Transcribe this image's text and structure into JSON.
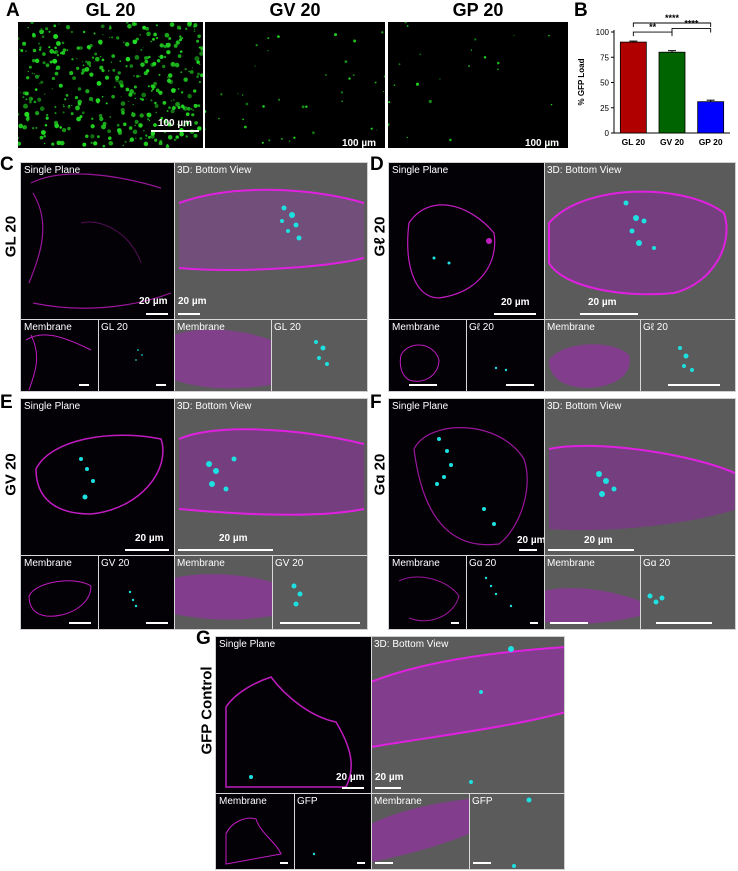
{
  "panel_a": {
    "letter": "A",
    "images": [
      {
        "title": "GL 20",
        "scale": "100 µm"
      },
      {
        "title": "GV 20",
        "scale": "100 µm"
      },
      {
        "title": "GP 20",
        "scale": "100 µm"
      }
    ]
  },
  "panel_b": {
    "letter": "B"
  },
  "chart_data": {
    "type": "bar",
    "categories": [
      "GL 20",
      "GV 20",
      "GP 20"
    ],
    "values": [
      90,
      80,
      31
    ],
    "errors": [
      1,
      1.5,
      1.5
    ],
    "colors": [
      "#b00000",
      "#006400",
      "#0000ff"
    ],
    "ylabel": "% GFP Load",
    "ylim": [
      0,
      100
    ],
    "yticks": [
      0,
      25,
      50,
      75,
      100
    ],
    "significance": [
      {
        "from": 0,
        "to": 1,
        "label": "**"
      },
      {
        "from": 1,
        "to": 2,
        "label": "****"
      },
      {
        "from": 0,
        "to": 2,
        "label": "****"
      }
    ]
  },
  "confocal": {
    "single_plane": "Single Plane",
    "bottom_view": "3D: Bottom View",
    "membrane": "Membrane",
    "scale_20": "20 µm"
  },
  "panel_c": {
    "letter": "C",
    "row_label": "GL 20",
    "channel": "GL 20"
  },
  "panel_d": {
    "letter": "D",
    "row_label": "Gℓ 20",
    "channel": "Gℓ 20"
  },
  "panel_e": {
    "letter": "E",
    "row_label": "GV 20",
    "channel": "GV 20"
  },
  "panel_f": {
    "letter": "F",
    "row_label": "Gɑ 20",
    "channel": "Gɑ 20"
  },
  "panel_g": {
    "letter": "G",
    "row_label": "GFP Control",
    "channel": "GFP"
  },
  "colors": {
    "membrane": "#e020e0",
    "gfp_green": "#22dd22",
    "gfp_cyan": "#1ee0e0",
    "grey_bg": "#5b5b5b"
  }
}
